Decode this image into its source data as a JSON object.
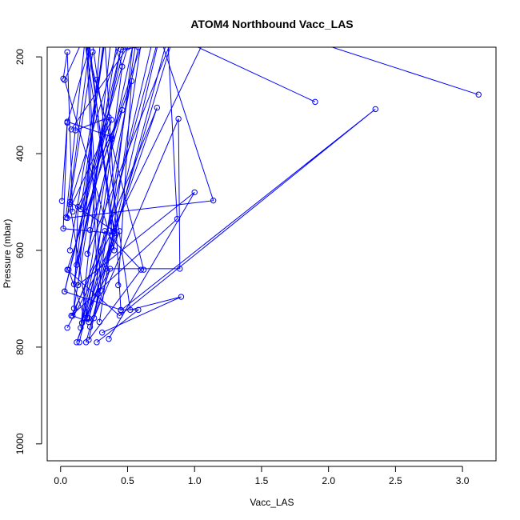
{
  "chart_data": {
    "type": "line",
    "title": "ATOM4 Northbound Vacc_LAS",
    "xlabel": "Vacc_LAS",
    "ylabel": "Pressure (mbar)",
    "xlim": [
      -0.1,
      3.25
    ],
    "ylim": [
      1035,
      180
    ],
    "y_reversed": true,
    "x_ticks": [
      0.0,
      0.5,
      1.0,
      1.5,
      2.0,
      2.5,
      3.0
    ],
    "x_tick_labels": [
      "0.0",
      "0.5",
      "1.0",
      "1.5",
      "2.0",
      "2.5",
      "3.0"
    ],
    "y_ticks": [
      200,
      400,
      600,
      800,
      1000
    ],
    "y_tick_labels": [
      "200",
      "400",
      "600",
      "800",
      "1000"
    ],
    "grid": false,
    "color": "#0000ff",
    "series": [
      {
        "x": [
          0.05,
          0.44,
          0.12,
          0.72,
          0.09,
          0.21,
          0.46,
          0.3
        ],
        "y": [
          760,
          560,
          790,
          305,
          735,
          748,
          220,
          90
        ]
      },
      {
        "x": [
          0.14,
          0.33,
          0.6,
          0.21,
          0.78,
          0.16
        ],
        "y": [
          790,
          560,
          640,
          785,
          110,
          750
        ]
      },
      {
        "x": [
          3.12,
          0.3,
          0.45,
          2.35,
          0.44,
          0.05,
          0.62
        ],
        "y": [
          278,
          25,
          724,
          308,
          735,
          640,
          160
        ]
      },
      {
        "x": [
          1.9,
          0.56,
          0.95
        ],
        "y": [
          293,
          120,
          150
        ]
      },
      {
        "x": [
          0.19,
          0.8,
          0.87,
          0.08,
          1.1
        ],
        "y": [
          790,
          160,
          535,
          735,
          150
        ]
      },
      {
        "x": [
          0.27,
          0.58,
          0.45,
          0.03,
          0.5
        ],
        "y": [
          790,
          723,
          723,
          685,
          150
        ]
      },
      {
        "x": [
          0.36,
          1.0,
          0.13,
          0.32
        ],
        "y": [
          783,
          480,
          672,
          100
        ]
      },
      {
        "x": [
          0.31,
          0.9,
          0.52,
          0.18
        ],
        "y": [
          770,
          696,
          723,
          60
        ]
      },
      {
        "x": [
          0.29,
          0.65,
          1.14,
          0.05,
          0.22
        ],
        "y": [
          748,
          80,
          497,
          533,
          170
        ]
      },
      {
        "x": [
          0.22,
          0.88,
          0.89,
          0.34,
          0.55
        ],
        "y": [
          758,
          328,
          638,
          638,
          150
        ]
      },
      {
        "x": [
          0.21,
          0.85,
          0.2,
          0.6
        ],
        "y": [
          740,
          150,
          607,
          100
        ]
      },
      {
        "x": [
          0.16,
          0.58,
          0.45,
          0.1,
          0.35
        ],
        "y": [
          750,
          180,
          185,
          670,
          100
        ]
      },
      {
        "x": [
          0.43,
          0.53,
          0.38,
          0.15,
          0.4
        ],
        "y": [
          672,
          250,
          370,
          760,
          100
        ]
      },
      {
        "x": [
          0.03,
          0.52,
          0.07,
          0.2,
          0.7
        ],
        "y": [
          685,
          100,
          505,
          740,
          150
        ]
      },
      {
        "x": [
          0.3,
          0.2,
          0.4,
          0.02,
          0.05,
          0.25
        ],
        "y": [
          683,
          160,
          565,
          555,
          336,
          150
        ]
      },
      {
        "x": [
          0.06,
          0.18,
          0.37,
          0.25,
          0.6
        ],
        "y": [
          640,
          740,
          638,
          740,
          100
        ]
      },
      {
        "x": [
          0.22,
          0.46,
          0.13,
          0.1,
          0.45
        ],
        "y": [
          558,
          310,
          510,
          720,
          120
        ]
      },
      {
        "x": [
          0.28,
          0.18,
          0.4,
          0.03,
          0.27
        ],
        "y": [
          690,
          90,
          600,
          248,
          100
        ]
      },
      {
        "x": [
          0.01,
          0.05,
          0.38,
          0.19,
          0.27
        ],
        "y": [
          498,
          334,
          365,
          520,
          247
        ]
      },
      {
        "x": [
          0.11,
          0.36,
          0.12,
          0.38,
          0.04,
          0.2
        ],
        "y": [
          352,
          325,
          630,
          330,
          532,
          120
        ]
      },
      {
        "x": [
          0.02,
          0.05,
          0.09
        ],
        "y": [
          245,
          190,
          520
        ]
      },
      {
        "x": [
          0.62,
          0.17,
          0.4,
          0.07,
          0.24
        ],
        "y": [
          640,
          150,
          560,
          500,
          190
        ]
      },
      {
        "x": [
          0.07,
          0.34,
          0.15,
          0.5,
          0.08
        ],
        "y": [
          600,
          150,
          515,
          180,
          350
        ]
      }
    ]
  }
}
